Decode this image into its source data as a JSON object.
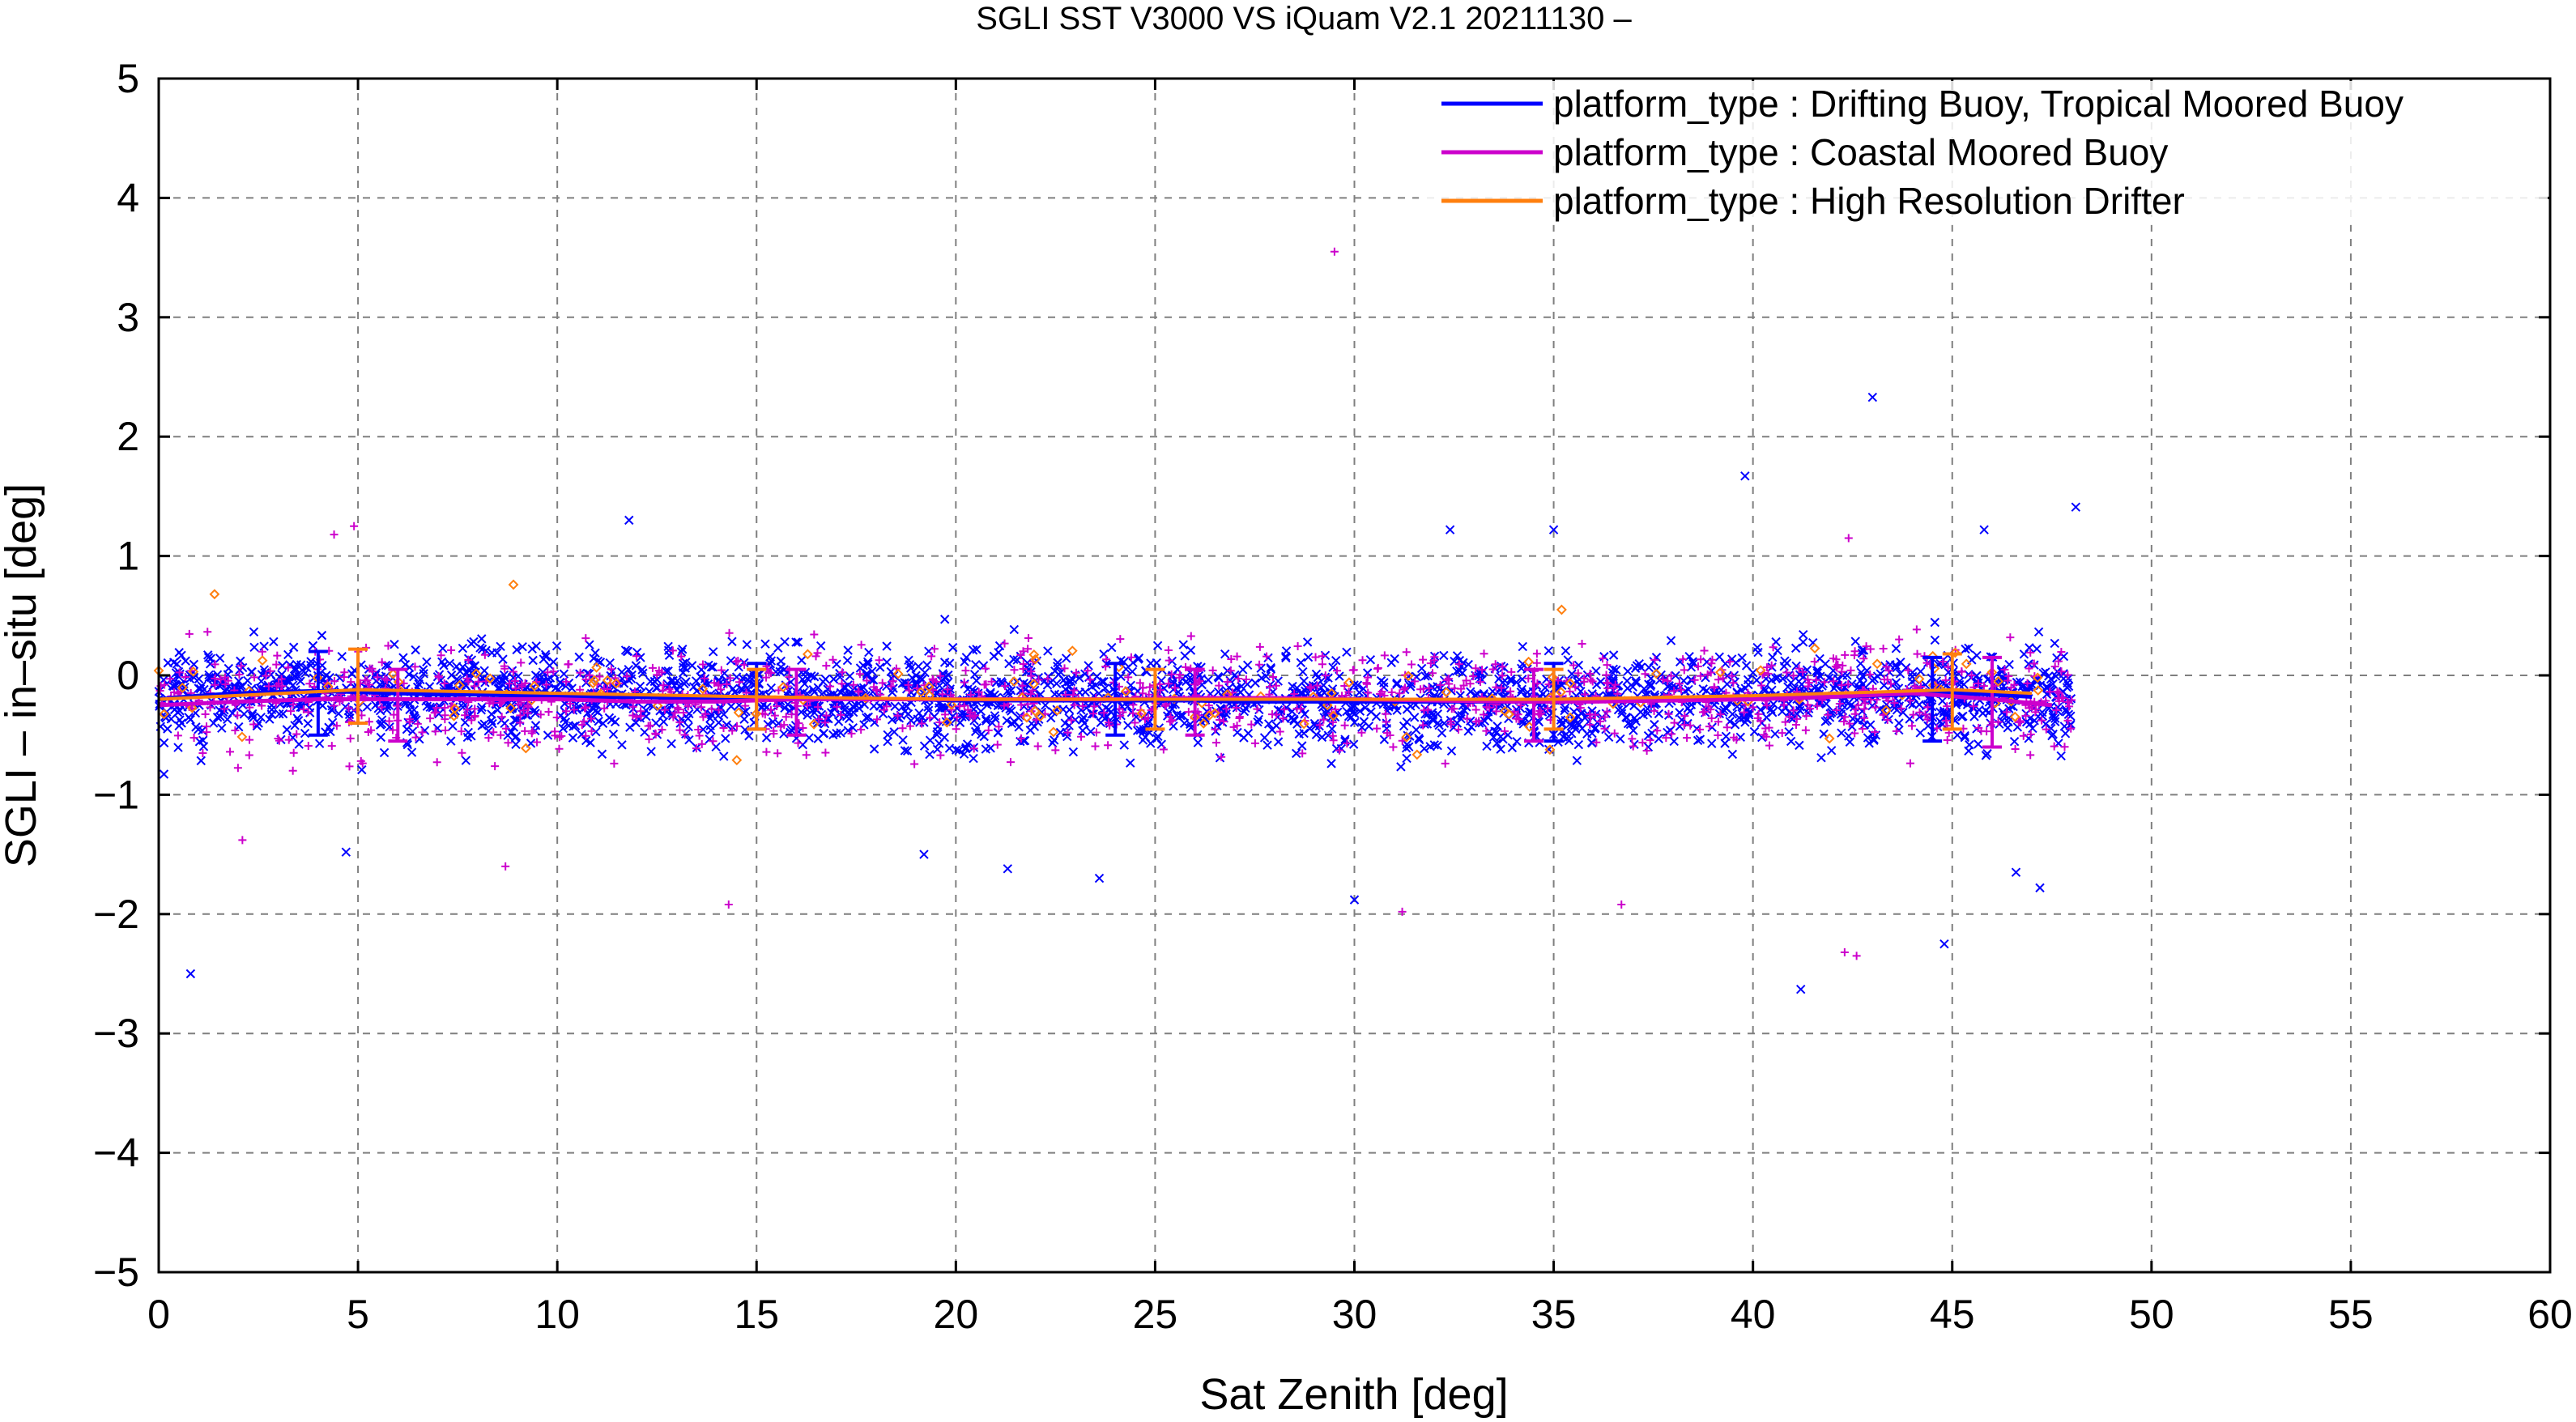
{
  "chart_data": {
    "type": "scatter",
    "title": "SGLI SST V3000 VS iQuam V2.1 20211130 –",
    "xlabel": "Sat Zenith [deg]",
    "ylabel": "SGLI – in–situ [deg]",
    "xlim": [
      0,
      60
    ],
    "ylim": [
      -5,
      5
    ],
    "xticks": [
      "0",
      "5",
      "10",
      "15",
      "20",
      "25",
      "30",
      "35",
      "40",
      "45",
      "50",
      "55",
      "60"
    ],
    "yticks": [
      "5",
      "4",
      "3",
      "2",
      "1",
      "0",
      "−1",
      "−2",
      "−3",
      "−4",
      "−5"
    ],
    "grid": true,
    "legend_position": "top-right",
    "series": [
      {
        "name": "platform_type : Drifting Buoy, Tropical Moored Buoy",
        "color": "#0000ff",
        "marker": "x",
        "bin_x": [
          0,
          1,
          2,
          3,
          4,
          5,
          6,
          7,
          8,
          9,
          10,
          11,
          12,
          13,
          14,
          15,
          16,
          17,
          18,
          19,
          20,
          21,
          22,
          23,
          24,
          25,
          26,
          27,
          28,
          29,
          30,
          31,
          32,
          33,
          34,
          35,
          36,
          37,
          38,
          39,
          40,
          41,
          42,
          43,
          44,
          45,
          46,
          47
        ],
        "bin_mean": [
          -0.2,
          -0.17,
          -0.15,
          -0.14,
          -0.13,
          -0.14,
          -0.15,
          -0.16,
          -0.16,
          -0.17,
          -0.17,
          -0.18,
          -0.18,
          -0.19,
          -0.19,
          -0.2,
          -0.2,
          -0.2,
          -0.2,
          -0.2,
          -0.21,
          -0.21,
          -0.21,
          -0.21,
          -0.21,
          -0.21,
          -0.21,
          -0.22,
          -0.22,
          -0.22,
          -0.22,
          -0.22,
          -0.22,
          -0.22,
          -0.22,
          -0.22,
          -0.21,
          -0.21,
          -0.2,
          -0.2,
          -0.19,
          -0.19,
          -0.18,
          -0.17,
          -0.16,
          -0.15,
          -0.16,
          -0.18
        ],
        "errorbars": [
          {
            "x": 4,
            "low": -0.5,
            "high": 0.2
          },
          {
            "x": 15,
            "low": -0.45,
            "high": 0.1
          },
          {
            "x": 24,
            "low": -0.5,
            "high": 0.1
          },
          {
            "x": 35,
            "low": -0.55,
            "high": 0.1
          },
          {
            "x": 44.5,
            "low": -0.55,
            "high": 0.15
          }
        ],
        "outliers": [
          {
            "x": 0.8,
            "y": -2.5
          },
          {
            "x": 4.7,
            "y": -1.48
          },
          {
            "x": 11.8,
            "y": 1.3
          },
          {
            "x": 19.2,
            "y": -1.5
          },
          {
            "x": 21.3,
            "y": -1.62
          },
          {
            "x": 23.6,
            "y": -1.7
          },
          {
            "x": 30,
            "y": -1.88
          },
          {
            "x": 32.4,
            "y": 1.22
          },
          {
            "x": 35,
            "y": 1.22
          },
          {
            "x": 39.8,
            "y": 1.67
          },
          {
            "x": 41.2,
            "y": -2.63
          },
          {
            "x": 43,
            "y": 2.33
          },
          {
            "x": 44.8,
            "y": -2.25
          },
          {
            "x": 45.8,
            "y": 1.22
          },
          {
            "x": 46.6,
            "y": -1.65
          },
          {
            "x": 47.2,
            "y": -1.78
          },
          {
            "x": 48.1,
            "y": 1.41
          }
        ]
      },
      {
        "name": "platform_type : Coastal Moored Buoy",
        "color": "#cc00cc",
        "marker": "+",
        "bin_x": [
          0,
          2,
          4,
          6,
          8,
          10,
          12,
          14,
          16,
          18,
          20,
          22,
          24,
          26,
          28,
          30,
          32,
          34,
          36,
          38,
          40,
          42,
          44,
          46,
          47.5
        ],
        "bin_mean": [
          -0.25,
          -0.22,
          -0.2,
          -0.2,
          -0.2,
          -0.2,
          -0.22,
          -0.22,
          -0.2,
          -0.2,
          -0.2,
          -0.2,
          -0.2,
          -0.19,
          -0.19,
          -0.2,
          -0.21,
          -0.22,
          -0.22,
          -0.21,
          -0.2,
          -0.18,
          -0.15,
          -0.2,
          -0.25
        ],
        "errorbars": [
          {
            "x": 6,
            "low": -0.55,
            "high": 0.05
          },
          {
            "x": 16,
            "low": -0.5,
            "high": 0.05
          },
          {
            "x": 26,
            "low": -0.5,
            "high": 0.05
          },
          {
            "x": 34.5,
            "low": -0.55,
            "high": 0.05
          },
          {
            "x": 46,
            "low": -0.6,
            "high": 0.15
          }
        ],
        "outliers": [
          {
            "x": 4.4,
            "y": 1.18
          },
          {
            "x": 4.9,
            "y": 1.25
          },
          {
            "x": 2.1,
            "y": -1.38
          },
          {
            "x": 8.7,
            "y": -1.6
          },
          {
            "x": 14.3,
            "y": -1.92
          },
          {
            "x": 29.5,
            "y": 3.55
          },
          {
            "x": 31.2,
            "y": -1.98
          },
          {
            "x": 36.7,
            "y": -1.92
          },
          {
            "x": 42.3,
            "y": -2.32
          },
          {
            "x": 42.6,
            "y": -2.35
          },
          {
            "x": 42.4,
            "y": 1.15
          }
        ]
      },
      {
        "name": "platform_type : High Resolution Drifter",
        "color": "#ff7f0e",
        "marker": "diamond",
        "bin_x": [
          0,
          5,
          10,
          15,
          20,
          25,
          30,
          35,
          40,
          45,
          47
        ],
        "bin_mean": [
          -0.2,
          -0.12,
          -0.15,
          -0.18,
          -0.2,
          -0.2,
          -0.2,
          -0.2,
          -0.17,
          -0.12,
          -0.15
        ],
        "errorbars": [
          {
            "x": 5,
            "low": -0.4,
            "high": 0.22
          },
          {
            "x": 15,
            "low": -0.45,
            "high": 0.05
          },
          {
            "x": 25,
            "low": -0.45,
            "high": 0.05
          },
          {
            "x": 35,
            "low": -0.45,
            "high": 0.05
          },
          {
            "x": 45,
            "low": -0.45,
            "high": 0.18
          }
        ],
        "outliers": [
          {
            "x": 1.4,
            "y": 0.68
          },
          {
            "x": 8.9,
            "y": 0.76
          },
          {
            "x": 35.2,
            "y": 0.55
          }
        ]
      }
    ],
    "scatter_band": {
      "x_range": [
        0,
        48
      ],
      "typical_y_range": [
        -1,
        0.6
      ]
    }
  }
}
